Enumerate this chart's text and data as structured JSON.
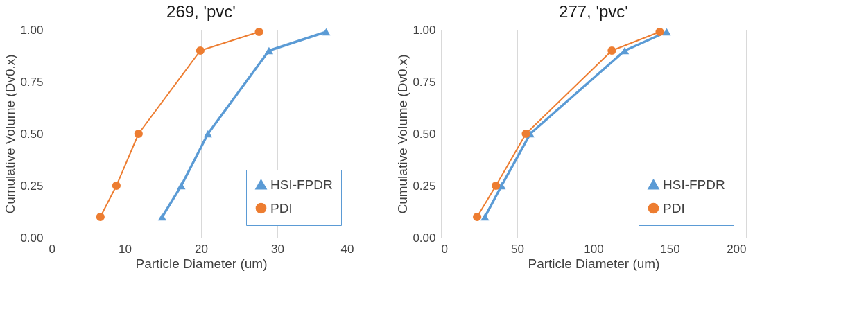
{
  "chart_data": [
    {
      "type": "line",
      "title": "269, 'pvc'",
      "xlabel": "Particle Diameter (um)",
      "ylabel": "Cumulative Volume (Dv0.x)",
      "xlim": [
        0,
        40
      ],
      "xticks": [
        0,
        10,
        20,
        30,
        40
      ],
      "ylim": [
        0,
        1
      ],
      "yticks": [
        {
          "value": 0,
          "label": "0.00"
        },
        {
          "value": 0.25,
          "label": "0.25"
        },
        {
          "value": 0.5,
          "label": "0.50"
        },
        {
          "value": 0.75,
          "label": "0.75"
        },
        {
          "value": 1,
          "label": "1.00"
        }
      ],
      "grid": true,
      "legend": "bottom right",
      "line_style": "solid",
      "series": [
        {
          "name": "HSI-FPDR",
          "color": "#5b9bd5",
          "marker": "triangle",
          "x": [
            14.9,
            17.4,
            20.9,
            28.9,
            36.4
          ],
          "values": [
            0.1,
            0.25,
            0.5,
            0.9,
            0.99
          ]
        },
        {
          "name": "PDI",
          "color": "#ed7d31",
          "marker": "circle",
          "x": [
            6.8,
            8.9,
            11.8,
            19.9,
            27.6
          ],
          "values": [
            0.1,
            0.25,
            0.5,
            0.9,
            0.99
          ]
        }
      ]
    },
    {
      "type": "line",
      "title": "277, 'pvc'",
      "xlabel": "Particle Diameter (um)",
      "ylabel": "Cumulative Volume (Dv0.x)",
      "xlim": [
        0,
        200
      ],
      "xticks": [
        0,
        50,
        100,
        150,
        200
      ],
      "ylim": [
        0,
        1
      ],
      "yticks": [
        {
          "value": 0,
          "label": "0.00"
        },
        {
          "value": 0.25,
          "label": "0.25"
        },
        {
          "value": 0.5,
          "label": "0.50"
        },
        {
          "value": 0.75,
          "label": "0.75"
        },
        {
          "value": 1,
          "label": "1.00"
        }
      ],
      "grid": true,
      "legend": "bottom right",
      "line_style": "solid",
      "series": [
        {
          "name": "HSI-FPDR",
          "color": "#5b9bd5",
          "marker": "triangle",
          "x": [
            28.8,
            39.7,
            58.5,
            120.5,
            148
          ],
          "values": [
            0.1,
            0.25,
            0.5,
            0.9,
            0.99
          ]
        },
        {
          "name": "PDI",
          "color": "#ed7d31",
          "marker": "circle",
          "x": [
            23.7,
            36,
            55.7,
            112,
            143.4
          ],
          "values": [
            0.1,
            0.25,
            0.5,
            0.9,
            0.99
          ]
        }
      ]
    }
  ]
}
